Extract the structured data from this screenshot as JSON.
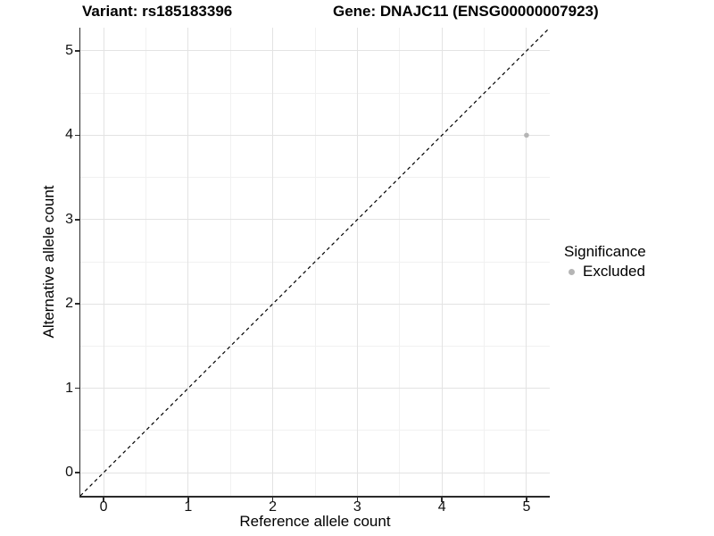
{
  "header": {
    "variant_title": "Variant: rs185183396",
    "gene_title": "Gene: DNAJC11 (ENSG00000007923)"
  },
  "chart_data": {
    "type": "scatter",
    "xlabel": "Reference allele count",
    "ylabel": "Alternative allele count",
    "xlim": [
      -0.275,
      5.275
    ],
    "ylim": [
      -0.275,
      5.275
    ],
    "x_ticks": [
      0,
      1,
      2,
      3,
      4,
      5
    ],
    "y_ticks": [
      0,
      1,
      2,
      3,
      4,
      5
    ],
    "x_minor_ticks": [
      0.5,
      1.5,
      2.5,
      3.5,
      4.5
    ],
    "y_minor_ticks": [
      0.5,
      1.5,
      2.5,
      3.5,
      4.5
    ],
    "grid": "major+minor",
    "points": [
      {
        "x": 5,
        "y": 4,
        "series": "Excluded",
        "color": "#b5b5b5",
        "radius": 2.8
      }
    ],
    "reference_line": {
      "slope": 1,
      "intercept": 0,
      "style": "dashed",
      "color": "#000000"
    },
    "legend": {
      "position": "right",
      "title": "Significance",
      "items": [
        {
          "label": "Excluded",
          "color": "#b5b5b5"
        }
      ]
    }
  },
  "colors": {
    "background": "#ffffff",
    "grid_major": "#e3e3e3",
    "grid_minor": "#f1f1f1",
    "axis_line": "#2b2b2b",
    "point_gray": "#b5b5b5"
  }
}
